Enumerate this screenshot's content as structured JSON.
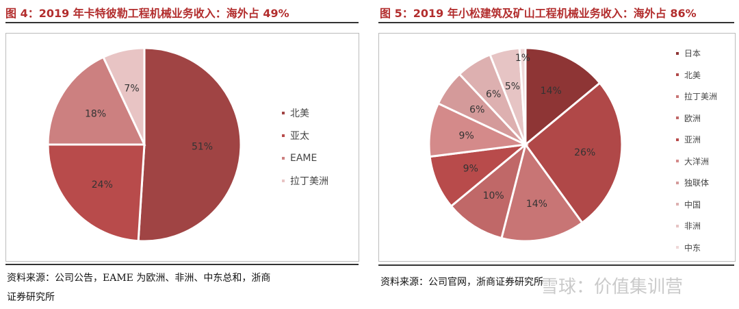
{
  "left": {
    "title": "图 4：2019 年卡特彼勒工程机械业务收入：海外占 49%",
    "source": [
      "资料来源：公司公告，EAME 为欧洲、非洲、中东总和，浙商",
      "证券研究所"
    ]
  },
  "right": {
    "title": "图 5：2019 年小松建筑及矿山工程机械业务收入：海外占 86%",
    "source": [
      "资料来源：公司官网，浙商证券研究所"
    ]
  },
  "watermark": "雪球：价值集训营",
  "chart_data": [
    {
      "type": "pie",
      "title": "图 4：2019 年卡特彼勒工程机械业务收入：海外占 49%",
      "categories": [
        "北美",
        "亚太",
        "EAME",
        "拉丁美洲"
      ],
      "values": [
        51,
        24,
        18,
        7
      ],
      "labels": [
        "51%",
        "24%",
        "18%",
        "7%"
      ],
      "colors": [
        "#a04444",
        "#b84b4b",
        "#cc8080",
        "#e8c4c4"
      ],
      "legend": "right"
    },
    {
      "type": "pie",
      "title": "图 5：2019 年小松建筑及矿山工程机械业务收入：海外占 86%",
      "categories": [
        "日本",
        "北美",
        "拉丁美洲",
        "欧洲",
        "亚洲",
        "大洋洲",
        "独联体",
        "中国",
        "非洲",
        "中东"
      ],
      "values": [
        14,
        26,
        14,
        10,
        9,
        9,
        6,
        6,
        5,
        1
      ],
      "labels": [
        "14%",
        "26%",
        "14%",
        "10%",
        "9%",
        "9%",
        "6%",
        "6%",
        "5%",
        "1%"
      ],
      "colors": [
        "#8e3535",
        "#b04848",
        "#c87575",
        "#c06868",
        "#b84b4b",
        "#d48a8a",
        "#d49a9a",
        "#ddb0b0",
        "#e6c4c4",
        "#efd8d8"
      ],
      "legend": "right"
    }
  ]
}
